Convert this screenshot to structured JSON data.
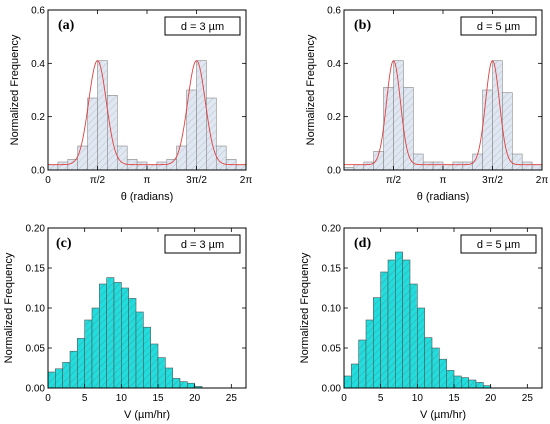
{
  "chart_data": [
    {
      "panel": "(a)",
      "type": "bar",
      "annotation": "d = 3 µm",
      "xlabel": "θ (radians)",
      "ylabel": "Normalized Frequency",
      "xlim": [
        0,
        6.2832
      ],
      "ylim": [
        0,
        0.6
      ],
      "x_ticks": [
        0,
        1.5708,
        3.1416,
        4.7124,
        6.2832
      ],
      "x_tick_labels": [
        "0",
        "π/2",
        "π",
        "3π/2",
        "2π"
      ],
      "y_ticks": [
        0,
        0.2,
        0.4,
        0.6
      ],
      "y_tick_labels": [
        "0.0",
        "0.2",
        "0.4",
        "0.6"
      ],
      "bin_width": 0.3142,
      "bin_starts": [
        0,
        0.3142,
        0.6283,
        0.9425,
        1.2566,
        1.5708,
        1.885,
        2.1991,
        2.5133,
        2.8274,
        3.1416,
        3.4558,
        3.7699,
        4.0841,
        4.3982,
        4.7124,
        5.0265,
        5.3407,
        5.6549,
        5.969
      ],
      "values": [
        0.02,
        0.03,
        0.04,
        0.09,
        0.27,
        0.41,
        0.28,
        0.09,
        0.04,
        0.03,
        0.02,
        0.03,
        0.04,
        0.09,
        0.3,
        0.41,
        0.27,
        0.09,
        0.04,
        0.02
      ],
      "fit": {
        "type": "gaussian",
        "color": "#e04040",
        "baseline": 0.02,
        "peaks": [
          {
            "center": 1.5708,
            "height": 0.39,
            "sigma": 0.28
          },
          {
            "center": 4.7124,
            "height": 0.39,
            "sigma": 0.28
          }
        ]
      },
      "bar_style": "hatched",
      "bar_fill": "#dfe7f2",
      "bar_edge": "#888888"
    },
    {
      "panel": "(b)",
      "type": "bar",
      "annotation": "d = 5 µm",
      "xlabel": "θ (radians)",
      "ylabel": "Normalized Frequency",
      "xlim": [
        0,
        6.2832
      ],
      "ylim": [
        0,
        0.6
      ],
      "x_ticks": [
        1.5708,
        3.1416,
        4.7124,
        6.2832
      ],
      "x_tick_labels": [
        "π/2",
        "π",
        "3π/2",
        "2π"
      ],
      "y_ticks": [
        0,
        0.2,
        0.4,
        0.6
      ],
      "y_tick_labels": [
        "0.0",
        "0.2",
        "0.4",
        "0.6"
      ],
      "bin_width": 0.3142,
      "bin_starts": [
        0,
        0.3142,
        0.6283,
        0.9425,
        1.2566,
        1.5708,
        1.885,
        2.1991,
        2.5133,
        2.8274,
        3.1416,
        3.4558,
        3.7699,
        4.0841,
        4.3982,
        4.7124,
        5.0265,
        5.3407,
        5.6549,
        5.969
      ],
      "values": [
        0.01,
        0.02,
        0.03,
        0.07,
        0.31,
        0.41,
        0.31,
        0.06,
        0.03,
        0.03,
        0.02,
        0.03,
        0.03,
        0.06,
        0.3,
        0.41,
        0.29,
        0.06,
        0.03,
        0.02
      ],
      "fit": {
        "type": "gaussian",
        "color": "#e04040",
        "baseline": 0.02,
        "peaks": [
          {
            "center": 1.5708,
            "height": 0.39,
            "sigma": 0.22
          },
          {
            "center": 4.7124,
            "height": 0.39,
            "sigma": 0.22
          }
        ]
      },
      "bar_style": "hatched",
      "bar_fill": "#dfe7f2",
      "bar_edge": "#888888"
    },
    {
      "panel": "(c)",
      "type": "bar",
      "annotation": "d = 3 µm",
      "xlabel": "V (µm/hr)",
      "ylabel": "Normalized Frequency",
      "xlim": [
        0,
        27
      ],
      "ylim": [
        0,
        0.2
      ],
      "x_ticks": [
        0,
        5,
        10,
        15,
        20,
        25
      ],
      "x_tick_labels": [
        "0",
        "5",
        "10",
        "15",
        "20",
        "25"
      ],
      "y_ticks": [
        0,
        0.05,
        0.1,
        0.15,
        0.2
      ],
      "y_tick_labels": [
        "0.00",
        "0.05",
        "0.10",
        "0.15",
        "0.20"
      ],
      "bin_width": 1,
      "bin_starts": [
        0,
        1,
        2,
        3,
        4,
        5,
        6,
        7,
        8,
        9,
        10,
        11,
        12,
        13,
        14,
        15,
        16,
        17,
        18,
        19,
        20
      ],
      "values": [
        0.02,
        0.024,
        0.032,
        0.046,
        0.062,
        0.085,
        0.1,
        0.13,
        0.138,
        0.132,
        0.125,
        0.112,
        0.095,
        0.076,
        0.055,
        0.038,
        0.025,
        0.012,
        0.008,
        0.006,
        0.002
      ],
      "bar_style": "hatched",
      "bar_fill": "#22dddd",
      "bar_edge": "#555555"
    },
    {
      "panel": "(d)",
      "type": "bar",
      "annotation": "d = 5 µm",
      "xlabel": "V (µm/hr)",
      "ylabel": "Normalized Frequency",
      "xlim": [
        0,
        27
      ],
      "ylim": [
        0,
        0.2
      ],
      "x_ticks": [
        0,
        5,
        10,
        15,
        20,
        25
      ],
      "x_tick_labels": [
        "0",
        "5",
        "10",
        "15",
        "20",
        "25"
      ],
      "y_ticks": [
        0,
        0.05,
        0.1,
        0.15,
        0.2
      ],
      "y_tick_labels": [
        "0.00",
        "0.05",
        "0.10",
        "0.15",
        "0.20"
      ],
      "bin_width": 1,
      "bin_starts": [
        0,
        1,
        2,
        3,
        4,
        5,
        6,
        7,
        8,
        9,
        10,
        11,
        12,
        13,
        14,
        15,
        16,
        17,
        18,
        19,
        20
      ],
      "values": [
        0.015,
        0.03,
        0.06,
        0.085,
        0.113,
        0.145,
        0.16,
        0.17,
        0.16,
        0.13,
        0.1,
        0.063,
        0.05,
        0.036,
        0.022,
        0.015,
        0.013,
        0.01,
        0.007,
        0.003,
        0.0
      ],
      "bar_style": "hatched",
      "bar_fill": "#22dddd",
      "bar_edge": "#555555"
    }
  ]
}
